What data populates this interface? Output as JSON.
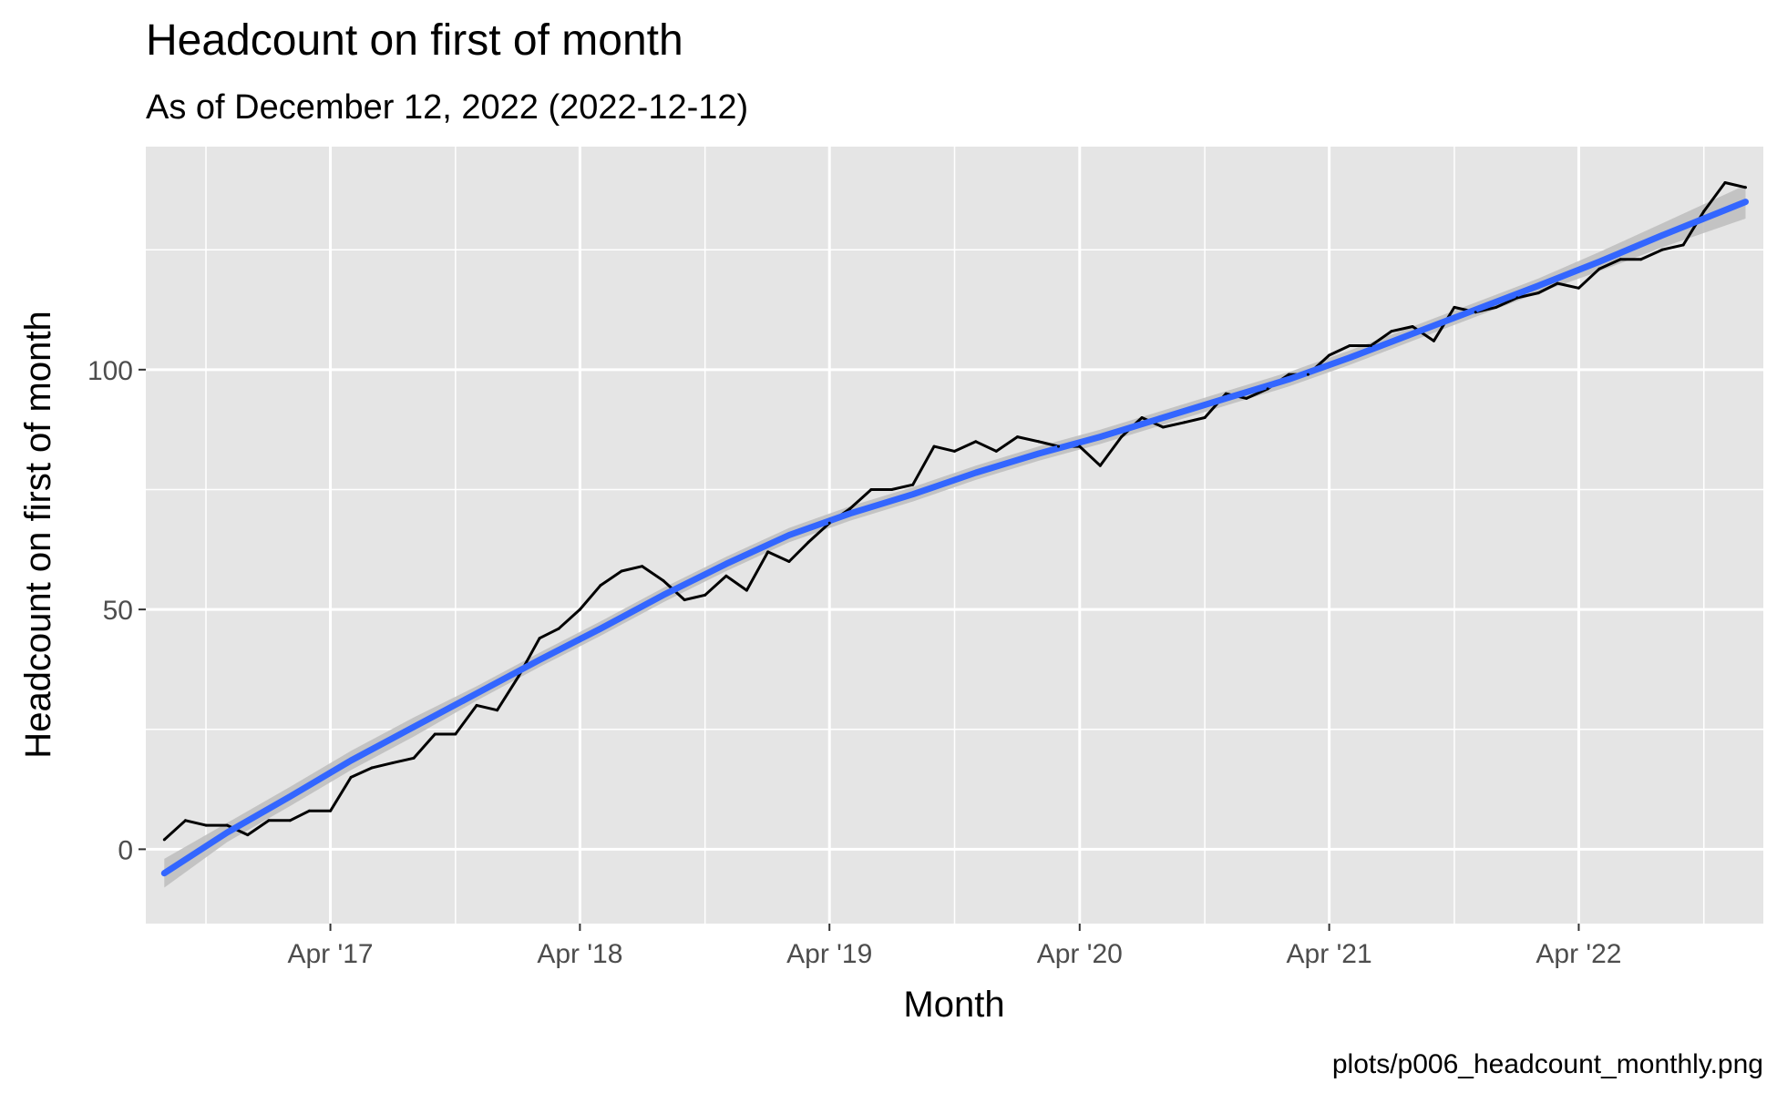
{
  "chart_data": {
    "type": "line",
    "title": "Headcount on first of month",
    "subtitle": "As of December 12, 2022 (2022-12-12)",
    "xlabel": "Month",
    "ylabel": "Headcount on first of month",
    "caption": "plots/p006_headcount_monthly.png",
    "x_ticks": [
      "2017-04-01",
      "2018-04-01",
      "2019-04-01",
      "2020-04-01",
      "2021-04-01",
      "2022-04-01"
    ],
    "x_tick_labels": [
      "Apr '17",
      "Apr '18",
      "Apr '19",
      "Apr '20",
      "Apr '21",
      "Apr '22"
    ],
    "xlim": [
      "2016-07-05",
      "2022-12-27"
    ],
    "y_ticks": [
      0,
      50,
      100
    ],
    "y_tick_labels": [
      "0",
      "50",
      "100"
    ],
    "ylim": [
      -15.5,
      146.5
    ],
    "grid": true,
    "background": "#e5e5e5",
    "series": [
      {
        "color": "#000000",
        "x": [
          "2016-08-01",
          "2016-09-01",
          "2016-10-01",
          "2016-11-01",
          "2016-12-01",
          "2017-01-01",
          "2017-02-01",
          "2017-03-01",
          "2017-04-01",
          "2017-05-01",
          "2017-06-01",
          "2017-07-01",
          "2017-08-01",
          "2017-09-01",
          "2017-10-01",
          "2017-11-01",
          "2017-12-01",
          "2018-01-01",
          "2018-02-01",
          "2018-03-01",
          "2018-04-01",
          "2018-05-01",
          "2018-06-01",
          "2018-07-01",
          "2018-08-01",
          "2018-09-01",
          "2018-10-01",
          "2018-11-01",
          "2018-12-01",
          "2019-01-01",
          "2019-02-01",
          "2019-03-01",
          "2019-04-01",
          "2019-05-01",
          "2019-06-01",
          "2019-07-01",
          "2019-08-01",
          "2019-09-01",
          "2019-10-01",
          "2019-11-01",
          "2019-12-01",
          "2020-01-01",
          "2020-02-01",
          "2020-03-01",
          "2020-04-01",
          "2020-05-01",
          "2020-06-01",
          "2020-07-01",
          "2020-08-01",
          "2020-09-01",
          "2020-10-01",
          "2020-11-01",
          "2020-12-01",
          "2021-01-01",
          "2021-02-01",
          "2021-03-01",
          "2021-04-01",
          "2021-05-01",
          "2021-06-01",
          "2021-07-01",
          "2021-08-01",
          "2021-09-01",
          "2021-10-01",
          "2021-11-01",
          "2021-12-01",
          "2022-01-01",
          "2022-02-01",
          "2022-03-01",
          "2022-04-01",
          "2022-05-01",
          "2022-06-01",
          "2022-07-01",
          "2022-08-01",
          "2022-09-01",
          "2022-10-01",
          "2022-11-01",
          "2022-12-01"
        ],
        "values": [
          2,
          6,
          5,
          5,
          3,
          6,
          6,
          8,
          8,
          15,
          17,
          18,
          19,
          24,
          24,
          30,
          29,
          36,
          44,
          46,
          50,
          55,
          58,
          59,
          56,
          52,
          53,
          57,
          54,
          62,
          60,
          64,
          68,
          71,
          75,
          75,
          76,
          84,
          83,
          85,
          83,
          86,
          85,
          84,
          84,
          80,
          86,
          90,
          88,
          89,
          90,
          95,
          94,
          96,
          99,
          99,
          103,
          105,
          105,
          108,
          109,
          106,
          113,
          112,
          113,
          115,
          116,
          118,
          117,
          121,
          123,
          123,
          125,
          126,
          133,
          139,
          138
        ]
      },
      {
        "type": "smooth",
        "color": "#3366ff",
        "band_color": "#bdbdbd",
        "x": [
          "2016-08-01",
          "2016-11-01",
          "2017-02-01",
          "2017-05-01",
          "2017-08-01",
          "2017-11-01",
          "2018-02-01",
          "2018-05-01",
          "2018-08-01",
          "2018-11-01",
          "2019-02-01",
          "2019-05-01",
          "2019-08-01",
          "2019-11-01",
          "2020-02-01",
          "2020-05-01",
          "2020-08-01",
          "2020-11-01",
          "2021-02-01",
          "2021-05-01",
          "2021-08-01",
          "2021-11-01",
          "2022-02-01",
          "2022-05-01",
          "2022-08-01",
          "2022-12-01"
        ],
        "values": [
          -5,
          3.5,
          11,
          18.5,
          25.5,
          32.5,
          39.5,
          46,
          53,
          59.5,
          65.5,
          70,
          74,
          78.5,
          82.5,
          86,
          90,
          94,
          98,
          102.5,
          107.5,
          112.5,
          117.5,
          122.5,
          128,
          135
        ],
        "lower": [
          -8,
          1.5,
          9,
          16.5,
          23.5,
          31,
          38,
          44.5,
          51.5,
          58,
          64,
          68.5,
          72.5,
          77,
          81,
          84.5,
          88.5,
          92.5,
          96.5,
          101,
          106,
          111,
          116,
          120.5,
          125.5,
          131.5
        ],
        "upper": [
          -2,
          5.5,
          13,
          20.5,
          27.5,
          34,
          41,
          47.5,
          54.5,
          61,
          67,
          71.5,
          75.5,
          80,
          84,
          87.5,
          91.5,
          95.5,
          99.5,
          104,
          109,
          114,
          119,
          124.5,
          130.5,
          138.5
        ]
      }
    ]
  }
}
